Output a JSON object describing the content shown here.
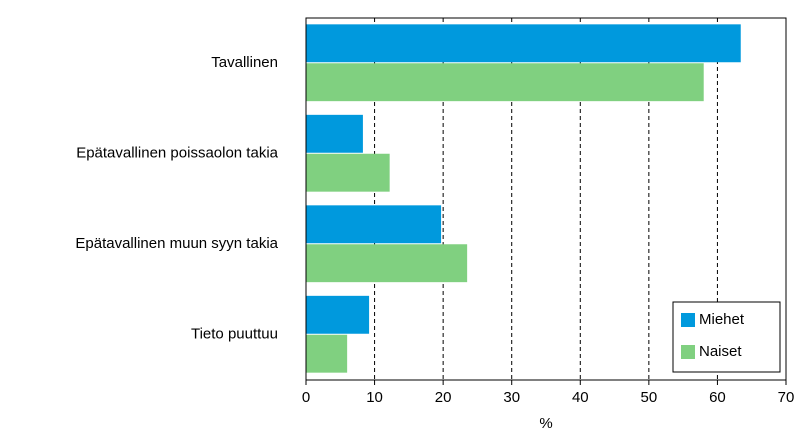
{
  "chart_data": {
    "type": "bar",
    "orientation": "horizontal",
    "categories": [
      "Tavallinen",
      "Epätavallinen poissaolon takia",
      "Epätavallinen muun syyn takia",
      "Tieto puuttuu"
    ],
    "series": [
      {
        "name": "Miehet",
        "color": "#0099dd",
        "values": [
          63.4,
          8.3,
          19.7,
          9.2
        ]
      },
      {
        "name": "Naiset",
        "color": "#80d080",
        "values": [
          58.0,
          12.2,
          23.5,
          6.0
        ]
      }
    ],
    "xlabel": "%",
    "xlim": [
      0,
      70
    ],
    "xticks": [
      0,
      10,
      20,
      30,
      40,
      50,
      60,
      70
    ],
    "grid": true,
    "legend": "lower right"
  }
}
